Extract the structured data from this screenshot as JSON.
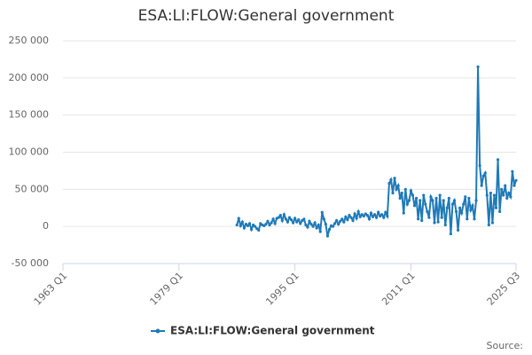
{
  "chart_data": {
    "type": "line",
    "title": "ESA:LI:FLOW:General government",
    "source": "Source:",
    "xlim": [
      "1963 Q1",
      "2025 Q3"
    ],
    "xticks": [
      "1963 Q1",
      "1979 Q1",
      "1995 Q1",
      "2011 Q1",
      "2025 Q3"
    ],
    "ylim": [
      -50000,
      250000
    ],
    "yticks": [
      {
        "value": -50000,
        "label": "-50 000"
      },
      0,
      {
        "value": 50000,
        "label": "50 000"
      },
      {
        "value": 100000,
        "label": "100 000"
      },
      {
        "value": 150000,
        "label": "150 000"
      },
      {
        "value": 200000,
        "label": "200 000"
      },
      {
        "value": 250000,
        "label": "250 000"
      }
    ],
    "grid": true,
    "x": [
      "1987 Q1",
      "1987 Q2",
      "1987 Q3",
      "1987 Q4",
      "1988 Q1",
      "1988 Q2",
      "1988 Q3",
      "1988 Q4",
      "1989 Q1",
      "1989 Q2",
      "1989 Q3",
      "1989 Q4",
      "1990 Q1",
      "1990 Q2",
      "1990 Q3",
      "1990 Q4",
      "1991 Q1",
      "1991 Q2",
      "1991 Q3",
      "1991 Q4",
      "1992 Q1",
      "1992 Q2",
      "1992 Q3",
      "1992 Q4",
      "1993 Q1",
      "1993 Q2",
      "1993 Q3",
      "1993 Q4",
      "1994 Q1",
      "1994 Q2",
      "1994 Q3",
      "1994 Q4",
      "1995 Q1",
      "1995 Q2",
      "1995 Q3",
      "1995 Q4",
      "1996 Q1",
      "1996 Q2",
      "1996 Q3",
      "1996 Q4",
      "1997 Q1",
      "1997 Q2",
      "1997 Q3",
      "1997 Q4",
      "1998 Q1",
      "1998 Q2",
      "1998 Q3",
      "1998 Q4",
      "1999 Q1",
      "1999 Q2",
      "1999 Q3",
      "1999 Q4",
      "2000 Q1",
      "2000 Q2",
      "2000 Q3",
      "2000 Q4",
      "2001 Q1",
      "2001 Q2",
      "2001 Q3",
      "2001 Q4",
      "2002 Q1",
      "2002 Q2",
      "2002 Q3",
      "2002 Q4",
      "2003 Q1",
      "2003 Q2",
      "2003 Q3",
      "2003 Q4",
      "2004 Q1",
      "2004 Q2",
      "2004 Q3",
      "2004 Q4",
      "2005 Q1",
      "2005 Q2",
      "2005 Q3",
      "2005 Q4",
      "2006 Q1",
      "2006 Q2",
      "2006 Q3",
      "2006 Q4",
      "2007 Q1",
      "2007 Q2",
      "2007 Q3",
      "2007 Q4",
      "2008 Q1",
      "2008 Q2",
      "2008 Q3",
      "2008 Q4",
      "2009 Q1",
      "2009 Q2",
      "2009 Q3",
      "2009 Q4",
      "2010 Q1",
      "2010 Q2",
      "2010 Q3",
      "2010 Q4",
      "2011 Q1",
      "2011 Q2",
      "2011 Q3",
      "2011 Q4",
      "2012 Q1",
      "2012 Q2",
      "2012 Q3",
      "2012 Q4",
      "2013 Q1",
      "2013 Q2",
      "2013 Q3",
      "2013 Q4",
      "2014 Q1",
      "2014 Q2",
      "2014 Q3",
      "2014 Q4",
      "2015 Q1",
      "2015 Q2",
      "2015 Q3",
      "2015 Q4",
      "2016 Q1",
      "2016 Q2",
      "2016 Q3",
      "2016 Q4",
      "2017 Q1",
      "2017 Q2",
      "2017 Q3",
      "2017 Q4",
      "2018 Q1",
      "2018 Q2",
      "2018 Q3",
      "2018 Q4",
      "2019 Q1",
      "2019 Q2",
      "2019 Q3",
      "2019 Q4",
      "2020 Q1",
      "2020 Q2",
      "2020 Q3",
      "2020 Q4",
      "2021 Q1",
      "2021 Q2",
      "2021 Q3",
      "2021 Q4",
      "2022 Q1",
      "2022 Q2",
      "2022 Q3",
      "2022 Q4",
      "2023 Q1",
      "2023 Q2",
      "2023 Q3",
      "2023 Q4",
      "2024 Q1",
      "2024 Q2",
      "2024 Q3",
      "2024 Q4",
      "2025 Q1",
      "2025 Q2",
      "2025 Q3"
    ],
    "series": [
      {
        "name": "ESA:LI:FLOW:General government",
        "color": "#1f7ab8",
        "values": [
          2000,
          11000,
          1000,
          6000,
          -2000,
          3000,
          1000,
          4000,
          -4000,
          2000,
          0,
          -3000,
          -5000,
          4000,
          2000,
          1000,
          3000,
          7000,
          2000,
          5000,
          10000,
          4000,
          11000,
          12000,
          15000,
          8000,
          16000,
          10000,
          6000,
          12000,
          9000,
          5000,
          11000,
          6000,
          9000,
          4000,
          8000,
          10000,
          2000,
          -1000,
          7000,
          3000,
          0,
          5000,
          -2000,
          2000,
          -7000,
          19000,
          10000,
          3000,
          -13000,
          -4000,
          1000,
          0,
          4000,
          8000,
          3000,
          7000,
          10000,
          6000,
          13000,
          9000,
          15000,
          12000,
          8000,
          17000,
          11000,
          20000,
          13000,
          16000,
          14000,
          17000,
          15000,
          10000,
          18000,
          13000,
          16000,
          12000,
          19000,
          14000,
          16000,
          12000,
          19000,
          14000,
          58000,
          63000,
          45000,
          65000,
          50000,
          55000,
          38000,
          45000,
          18000,
          50000,
          30000,
          35000,
          48000,
          42000,
          28000,
          38000,
          10000,
          35000,
          8000,
          42000,
          30000,
          20000,
          12000,
          40000,
          35000,
          5000,
          38000,
          6000,
          42000,
          12000,
          35000,
          2000,
          25000,
          38000,
          -10000,
          30000,
          35000,
          20000,
          -5000,
          25000,
          18000,
          30000,
          40000,
          10000,
          38000,
          22000,
          28000,
          10000,
          35000,
          215000,
          82000,
          55000,
          68000,
          72000,
          42000,
          2000,
          45000,
          5000,
          42000,
          25000,
          90000,
          20000,
          50000,
          42000,
          55000,
          38000,
          45000,
          40000,
          74000,
          55000,
          62000
        ]
      }
    ]
  }
}
